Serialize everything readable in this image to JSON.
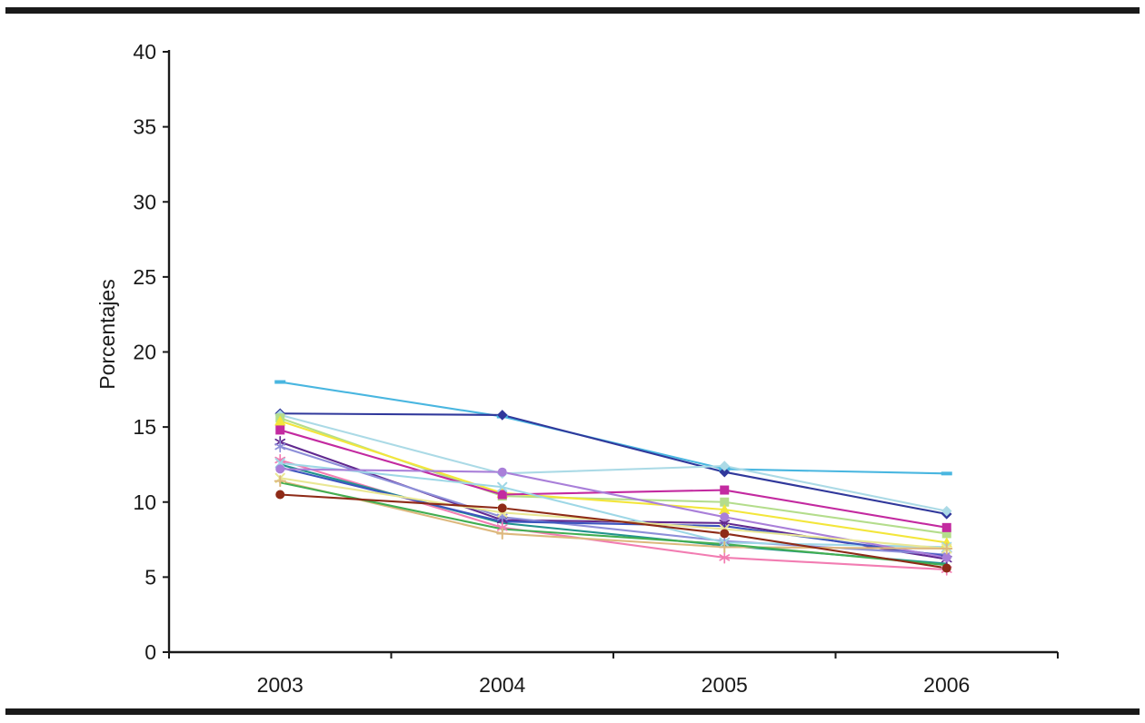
{
  "figure": {
    "background": "#ffffff",
    "border_rule_color": "#1a1a1a"
  },
  "chart_data": {
    "type": "line",
    "title": "",
    "xlabel": "",
    "ylabel": "Porcentajes",
    "categories": [
      "2003",
      "2004",
      "2005",
      "2006"
    ],
    "ylim": [
      0,
      40
    ],
    "yticks": [
      0,
      5,
      10,
      15,
      20,
      25,
      30,
      35,
      40
    ],
    "grid": false,
    "legend_position": "none",
    "axis_color": "#1a1a1a",
    "series": [
      {
        "name": "serie-sky-blue",
        "color": "#49B6E0",
        "marker": "dash",
        "values": [
          18.0,
          15.7,
          12.2,
          11.9
        ]
      },
      {
        "name": "serie-navy",
        "color": "#30389B",
        "marker": "diamond",
        "values": [
          15.9,
          15.8,
          12.0,
          9.2
        ]
      },
      {
        "name": "serie-pale-turquoise",
        "color": "#ABDAE6",
        "marker": "diamond",
        "values": [
          15.8,
          11.9,
          12.4,
          9.4
        ]
      },
      {
        "name": "serie-light-green",
        "color": "#B4DD8C",
        "marker": "square",
        "values": [
          15.6,
          10.4,
          10.0,
          7.9
        ]
      },
      {
        "name": "serie-yellow",
        "color": "#F3E63B",
        "marker": "triangle",
        "values": [
          15.4,
          10.6,
          9.5,
          7.3
        ]
      },
      {
        "name": "serie-magenta",
        "color": "#C32AA0",
        "marker": "square",
        "values": [
          14.8,
          10.5,
          10.8,
          8.3
        ]
      },
      {
        "name": "serie-dark-purple",
        "color": "#61298F",
        "marker": "asterisk",
        "values": [
          14.0,
          8.8,
          8.6,
          6.2
        ]
      },
      {
        "name": "serie-periwinkle",
        "color": "#8D8FD9",
        "marker": "asterisk",
        "values": [
          13.7,
          9.0,
          7.4,
          6.5
        ]
      },
      {
        "name": "serie-pink",
        "color": "#F27DB2",
        "marker": "asterisk",
        "values": [
          12.8,
          8.3,
          6.3,
          5.5
        ]
      },
      {
        "name": "serie-light-cyan",
        "color": "#9ED7E6",
        "marker": "x",
        "values": [
          12.6,
          11.0,
          7.3,
          7.0
        ]
      },
      {
        "name": "serie-teal",
        "color": "#23948D",
        "marker": "none",
        "values": [
          12.5,
          8.6,
          7.1,
          5.9
        ]
      },
      {
        "name": "serie-royal-blue",
        "color": "#3C55BE",
        "marker": "none",
        "values": [
          12.3,
          8.7,
          8.4,
          6.4
        ]
      },
      {
        "name": "serie-violet",
        "color": "#A97FD9",
        "marker": "circle",
        "values": [
          12.2,
          12.0,
          9.0,
          6.3
        ]
      },
      {
        "name": "serie-pale-yellow",
        "color": "#E9E794",
        "marker": "x",
        "values": [
          11.6,
          9.3,
          8.2,
          6.9
        ]
      },
      {
        "name": "serie-tan",
        "color": "#DDB87E",
        "marker": "plus",
        "values": [
          11.4,
          7.9,
          7.0,
          6.9
        ]
      },
      {
        "name": "serie-green",
        "color": "#42AE52",
        "marker": "none",
        "values": [
          11.3,
          8.2,
          7.2,
          5.8
        ]
      },
      {
        "name": "serie-dark-red",
        "color": "#8E2B18",
        "marker": "circle",
        "values": [
          10.5,
          9.6,
          7.9,
          5.6
        ]
      }
    ]
  }
}
